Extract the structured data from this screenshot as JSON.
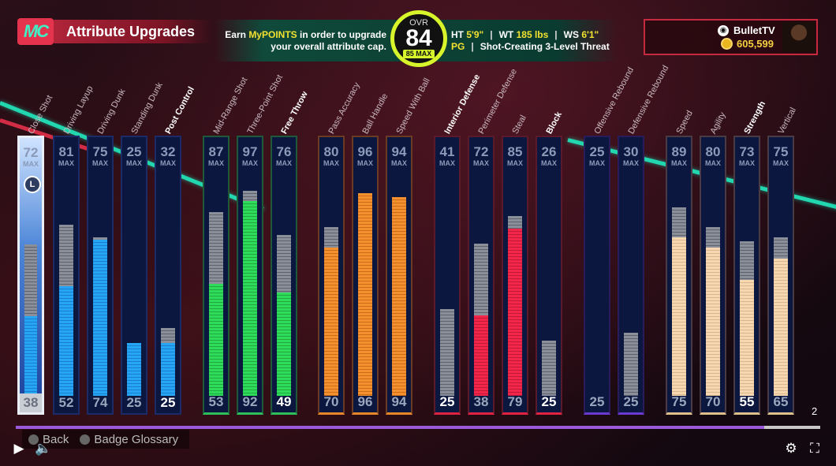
{
  "header": {
    "logo": "MC",
    "title": "Attribute Upgrades",
    "points_text_line1_a": "Earn ",
    "points_text_line1_b": "MyPOINTS",
    "points_text_line1_c": " in order to upgrade",
    "points_text_line2": "your overall attribute cap.",
    "ovr_label": "OVR",
    "ovr_value": "84",
    "ovr_max": "85 MAX",
    "ht_label": "HT",
    "ht_value": "5'9\"",
    "wt_label": "WT",
    "wt_value": "185 lbs",
    "ws_label": "WS",
    "ws_value": "6'1\"",
    "position": "PG",
    "archetype": "Shot-Creating 3-Level Threat",
    "separator": "|"
  },
  "player": {
    "name": "BulletTV",
    "currency": "605,599"
  },
  "max_label": "MAX",
  "attributes": [
    {
      "name": "Close Shot",
      "max": "72",
      "current": "38",
      "max_val": 72,
      "cur_val": 38,
      "color": "blue",
      "selected": true,
      "bold": false
    },
    {
      "name": "Driving Layup",
      "max": "81",
      "current": "52",
      "max_val": 81,
      "cur_val": 52,
      "color": "blue",
      "bold": false
    },
    {
      "name": "Driving Dunk",
      "max": "75",
      "current": "74",
      "max_val": 75,
      "cur_val": 74,
      "color": "blue",
      "bold": false
    },
    {
      "name": "Standing Dunk",
      "max": "25",
      "current": "25",
      "max_val": 25,
      "cur_val": 25,
      "color": "blue",
      "bold": false
    },
    {
      "name": "Post Control",
      "max": "32",
      "current": "25",
      "max_val": 32,
      "cur_val": 25,
      "color": "blue",
      "bold": true
    },
    {
      "name": "Mid-Range Shot",
      "max": "87",
      "current": "53",
      "max_val": 87,
      "cur_val": 53,
      "color": "green",
      "bold": false
    },
    {
      "name": "Three-Point Shot",
      "max": "97",
      "current": "92",
      "max_val": 97,
      "cur_val": 92,
      "color": "green",
      "bold": false
    },
    {
      "name": "Free Throw",
      "max": "76",
      "current": "49",
      "max_val": 76,
      "cur_val": 49,
      "color": "green",
      "bold": true
    },
    {
      "name": "Pass Accuracy",
      "max": "80",
      "current": "70",
      "max_val": 80,
      "cur_val": 70,
      "color": "orange",
      "bold": false
    },
    {
      "name": "Ball Handle",
      "max": "96",
      "current": "96",
      "max_val": 96,
      "cur_val": 96,
      "color": "orange",
      "bold": false
    },
    {
      "name": "Speed With Ball",
      "max": "94",
      "current": "94",
      "max_val": 94,
      "cur_val": 94,
      "color": "orange",
      "bold": false
    },
    {
      "name": "Interior Defense",
      "max": "41",
      "current": "25",
      "max_val": 41,
      "cur_val": 25,
      "color": "red",
      "bold": true
    },
    {
      "name": "Perimeter Defense",
      "max": "72",
      "current": "38",
      "max_val": 72,
      "cur_val": 38,
      "color": "red",
      "bold": false
    },
    {
      "name": "Steal",
      "max": "85",
      "current": "79",
      "max_val": 85,
      "cur_val": 79,
      "color": "red",
      "bold": false
    },
    {
      "name": "Block",
      "max": "26",
      "current": "25",
      "max_val": 26,
      "cur_val": 25,
      "color": "red",
      "bold": true
    },
    {
      "name": "Offensive Rebound",
      "max": "25",
      "current": "25",
      "max_val": 25,
      "cur_val": 25,
      "color": "purple",
      "bold": false
    },
    {
      "name": "Defensive Rebound",
      "max": "30",
      "current": "25",
      "max_val": 30,
      "cur_val": 25,
      "color": "purple",
      "bold": false
    },
    {
      "name": "Speed",
      "max": "89",
      "current": "75",
      "max_val": 89,
      "cur_val": 75,
      "color": "cream",
      "bold": false
    },
    {
      "name": "Agility",
      "max": "80",
      "current": "70",
      "max_val": 80,
      "cur_val": 70,
      "color": "cream",
      "bold": false
    },
    {
      "name": "Strength",
      "max": "73",
      "current": "55",
      "max_val": 73,
      "cur_val": 55,
      "color": "cream",
      "bold": true
    },
    {
      "name": "Vertical",
      "max": "75",
      "current": "65",
      "max_val": 75,
      "cur_val": 65,
      "color": "cream",
      "bold": false
    }
  ],
  "selected_icon": "L",
  "footer": {
    "back_label": "Back",
    "glossary_label": "Badge Glossary",
    "page_indicator": "2",
    "progress": 0.93
  },
  "icons": {
    "play": "play-icon",
    "volume": "volume-icon",
    "settings": "settings-icon",
    "fullscreen": "fullscreen-icon"
  }
}
